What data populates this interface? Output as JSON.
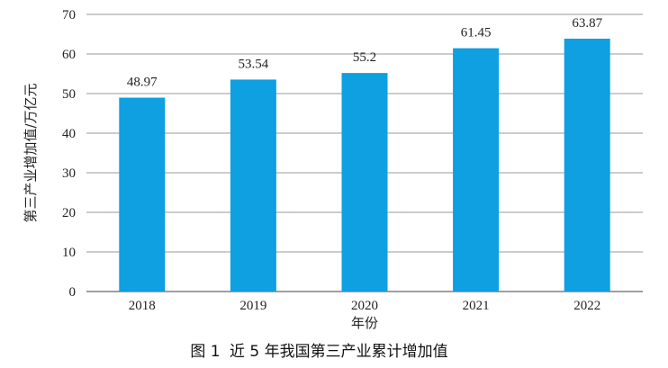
{
  "chart_data": {
    "type": "bar",
    "categories": [
      "2018",
      "2019",
      "2020",
      "2021",
      "2022"
    ],
    "values": [
      48.97,
      53.54,
      55.2,
      61.45,
      63.87
    ],
    "value_labels": [
      "48.97",
      "53.54",
      "55.2",
      "61.45",
      "63.87"
    ],
    "xlabel": "年份",
    "ylabel": "第三产业增加值/万亿元",
    "ylim": [
      0,
      70
    ],
    "yticks": [
      "0",
      "10",
      "20",
      "30",
      "40",
      "50",
      "60",
      "70"
    ],
    "grid": true,
    "bar_color": "#0ea0e0"
  },
  "caption": {
    "figure_no": "图 1",
    "text": "近 5 年我国第三产业累计增加值"
  }
}
